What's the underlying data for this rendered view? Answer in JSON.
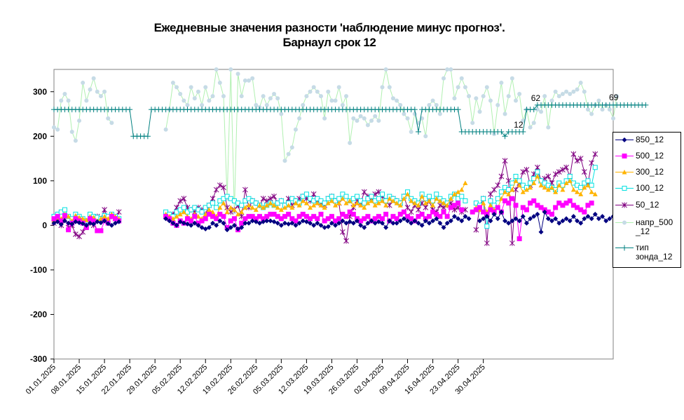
{
  "title": {
    "line1": "Ежедневные значения разности 'наблюдение минус прогноз'.",
    "line2": "Барнаул    срок 12"
  },
  "chart_data": {
    "type": "line",
    "y_ticks": [
      "300",
      "200",
      "100",
      "0",
      "-100",
      "-200",
      "-300"
    ],
    "ylim": [
      -300,
      350
    ],
    "x_ticks": [
      "01.01.2025",
      "08.01.2025",
      "15.01.2025",
      "22.01.2025",
      "29.01.2025",
      "05.02.2025",
      "12.02.2025",
      "19.02.2025",
      "26.02.2025",
      "05.03.2025",
      "12.03.2025",
      "19.03.2025",
      "26.03.2025",
      "02.04.2025",
      "09.04.2025",
      "16.04.2025",
      "23.04.2025",
      "30.04.2025"
    ],
    "grid": false,
    "legend_position": "right",
    "annotations": [
      "12",
      "62",
      "69"
    ],
    "series": [
      {
        "name": "850_12",
        "color": "#000080",
        "values": [
          5,
          8,
          2,
          10,
          5,
          3,
          8,
          6,
          4,
          0,
          5,
          3,
          8,
          6,
          10,
          4,
          0,
          5,
          8,
          null,
          null,
          null,
          null,
          null,
          null,
          null,
          null,
          null,
          null,
          null,
          null,
          15,
          10,
          5,
          0,
          8,
          5,
          3,
          0,
          5,
          0,
          -5,
          -8,
          -5,
          5,
          0,
          10,
          5,
          -10,
          -5,
          0,
          -8,
          -5,
          5,
          5,
          10,
          8,
          5,
          8,
          10,
          10,
          8,
          5,
          0,
          5,
          3,
          5,
          0,
          5,
          10,
          8,
          5,
          0,
          5,
          0,
          -5,
          -3,
          5,
          0,
          5,
          10,
          5,
          8,
          5,
          10,
          0,
          -5,
          5,
          10,
          5,
          8,
          5,
          -5,
          10,
          5,
          5,
          10,
          15,
          10,
          5,
          10,
          5,
          0,
          10,
          5,
          10,
          15,
          5,
          -5,
          5,
          10,
          20,
          15,
          10,
          20,
          15,
          null,
          null,
          10,
          15,
          20,
          10,
          25,
          15,
          30,
          10,
          5,
          10,
          15,
          10,
          20,
          5,
          15,
          20,
          25,
          -15,
          30,
          15,
          10,
          15,
          5,
          10,
          15,
          10,
          20,
          10,
          5,
          15,
          20,
          15,
          25,
          15,
          20,
          10,
          15,
          20
        ]
      },
      {
        "name": "500_12",
        "color": "#ff00ff",
        "values": [
          15,
          20,
          10,
          22,
          -10,
          5,
          15,
          10,
          5,
          -5,
          15,
          10,
          -12,
          -12,
          10,
          5,
          20,
          15,
          10,
          null,
          null,
          null,
          null,
          null,
          null,
          null,
          null,
          null,
          null,
          null,
          null,
          20,
          15,
          5,
          0,
          10,
          5,
          15,
          10,
          20,
          5,
          10,
          15,
          25,
          20,
          15,
          25,
          20,
          -5,
          10,
          15,
          -10,
          5,
          15,
          20,
          20,
          15,
          20,
          15,
          20,
          25,
          25,
          20,
          15,
          20,
          25,
          15,
          10,
          20,
          25,
          20,
          15,
          20,
          15,
          25,
          10,
          15,
          20,
          10,
          15,
          25,
          20,
          30,
          25,
          15,
          10,
          15,
          20,
          10,
          15,
          20,
          15,
          25,
          10,
          20,
          15,
          25,
          30,
          20,
          15,
          10,
          20,
          25,
          15,
          20,
          30,
          25,
          20,
          30,
          20,
          40,
          45,
          50,
          35,
          null,
          null,
          30,
          35,
          40,
          30,
          25,
          35,
          30,
          40,
          30,
          55,
          50,
          60,
          45,
          -30,
          40,
          35,
          50,
          55,
          45,
          40,
          35,
          30,
          25,
          40,
          50,
          45,
          50,
          55,
          45,
          40,
          35,
          30,
          45,
          50
        ]
      },
      {
        "name": "300_12",
        "color": "#ffb400",
        "values": [
          10,
          18,
          15,
          25,
          20,
          10,
          22,
          18,
          15,
          12,
          20,
          18,
          10,
          15,
          20,
          15,
          25,
          20,
          15,
          null,
          null,
          null,
          null,
          null,
          null,
          null,
          null,
          null,
          null,
          null,
          null,
          25,
          20,
          15,
          20,
          25,
          30,
          20,
          15,
          25,
          20,
          15,
          25,
          35,
          30,
          20,
          40,
          50,
          30,
          40,
          35,
          25,
          30,
          40,
          45,
          40,
          35,
          45,
          40,
          45,
          50,
          45,
          40,
          35,
          40,
          45,
          40,
          50,
          45,
          55,
          50,
          40,
          45,
          50,
          45,
          40,
          50,
          55,
          45,
          50,
          60,
          50,
          55,
          45,
          50,
          45,
          40,
          50,
          55,
          45,
          50,
          55,
          45,
          60,
          55,
          50,
          45,
          60,
          70,
          55,
          50,
          45,
          65,
          50,
          55,
          45,
          60,
          55,
          50,
          45,
          60,
          70,
          75,
          80,
          95,
          null,
          null,
          40,
          35,
          50,
          30,
          45,
          35,
          40,
          60,
          75,
          70,
          80,
          100,
          90,
          75,
          80,
          85,
          95,
          110,
          90,
          85,
          80,
          85,
          75,
          90,
          80,
          95,
          100,
          80,
          75,
          70,
          85,
          90,
          75,
          70
        ]
      },
      {
        "name": "100_12",
        "color": "#00e0e0",
        "values": [
          20,
          25,
          30,
          35,
          20,
          15,
          25,
          20,
          15,
          10,
          25,
          20,
          18,
          15,
          22,
          20,
          25,
          20,
          15,
          null,
          null,
          null,
          null,
          null,
          null,
          null,
          null,
          null,
          null,
          null,
          null,
          30,
          25,
          20,
          30,
          35,
          40,
          30,
          35,
          40,
          35,
          30,
          40,
          45,
          50,
          40,
          55,
          60,
          65,
          60,
          55,
          50,
          45,
          55,
          60,
          55,
          50,
          45,
          40,
          45,
          50,
          45,
          50,
          55,
          45,
          50,
          60,
          55,
          50,
          65,
          70,
          60,
          55,
          60,
          55,
          50,
          60,
          65,
          55,
          60,
          70,
          65,
          55,
          60,
          65,
          55,
          50,
          60,
          65,
          55,
          60,
          70,
          55,
          65,
          60,
          55,
          50,
          65,
          75,
          60,
          55,
          50,
          70,
          60,
          65,
          55,
          70,
          60,
          55,
          50,
          65,
          70,
          60,
          65,
          55,
          null,
          null,
          50,
          45,
          60,
          -2,
          55,
          45,
          60,
          75,
          85,
          80,
          95,
          110,
          100,
          90,
          85,
          95,
          105,
          120,
          100,
          95,
          90,
          85,
          80,
          95,
          90,
          100,
          110,
          95,
          90,
          85,
          95,
          100,
          90,
          130
        ]
      },
      {
        "name": "50_12",
        "color": "#800080",
        "values": [
          5,
          10,
          0,
          20,
          -5,
          0,
          -20,
          -25,
          -15,
          10,
          5,
          0,
          20,
          15,
          35,
          10,
          20,
          15,
          30,
          null,
          null,
          null,
          null,
          null,
          null,
          null,
          null,
          null,
          null,
          null,
          null,
          20,
          15,
          25,
          40,
          55,
          60,
          40,
          35,
          30,
          40,
          35,
          25,
          45,
          60,
          80,
          90,
          85,
          40,
          30,
          35,
          45,
          20,
          80,
          40,
          55,
          50,
          45,
          60,
          55,
          60,
          65,
          50,
          55,
          45,
          60,
          45,
          55,
          60,
          65,
          60,
          55,
          70,
          55,
          50,
          45,
          60,
          65,
          55,
          50,
          -15,
          -35,
          20,
          40,
          55,
          50,
          75,
          65,
          60,
          70,
          75,
          65,
          55,
          45,
          60,
          55,
          50,
          65,
          40,
          30,
          45,
          35,
          50,
          40,
          55,
          35,
          30,
          45,
          40,
          45,
          50,
          35,
          40,
          30,
          35,
          null,
          null,
          -10,
          40,
          60,
          -40,
          70,
          80,
          90,
          110,
          145,
          100,
          -40,
          80,
          95,
          120,
          125,
          90,
          115,
          130,
          100,
          105,
          110,
          95,
          115,
          120,
          125,
          130,
          110,
          160,
          145,
          150,
          120,
          95,
          140,
          160
        ]
      },
      {
        "name": "напр_500_12",
        "color": "#b0f0b0",
        "marker_color": "#c6dbe6",
        "values": [
          220,
          215,
          280,
          295,
          280,
          210,
          190,
          235,
          320,
          280,
          305,
          330,
          300,
          290,
          300,
          240,
          230,
          null,
          null,
          null,
          null,
          null,
          null,
          null,
          null,
          null,
          null,
          null,
          null,
          null,
          null,
          215,
          260,
          320,
          310,
          295,
          280,
          270,
          310,
          285,
          300,
          270,
          310,
          280,
          290,
          350,
          320,
          290,
          60,
          350,
          30,
          340,
          290,
          325,
          325,
          330,
          270,
          265,
          290,
          270,
          285,
          295,
          285,
          250,
          145,
          160,
          175,
          215,
          240,
          270,
          290,
          300,
          310,
          300,
          290,
          240,
          300,
          280,
          280,
          310,
          270,
          290,
          185,
          240,
          235,
          245,
          240,
          225,
          235,
          245,
          235,
          310,
          350,
          310,
          285,
          280,
          270,
          250,
          240,
          210,
          250,
          230,
          240,
          200,
          270,
          280,
          270,
          250,
          330,
          350,
          350,
          285,
          310,
          330,
          310,
          290,
          230,
          285,
          255,
          290,
          310,
          280,
          205,
          270,
          320,
          250,
          290,
          330,
          280,
          295,
          235,
          260,
          220,
          230,
          260,
          255,
          290,
          220,
          280,
          300,
          290,
          295,
          300,
          295,
          300,
          305,
          320,
          300,
          260,
          250,
          270,
          280,
          260,
          270,
          260,
          240,
          290
        ]
      },
      {
        "name": "тип зонда_12",
        "color": "#008080",
        "values": [
          260,
          260,
          260,
          260,
          260,
          260,
          260,
          260,
          260,
          260,
          260,
          260,
          260,
          260,
          260,
          260,
          260,
          260,
          260,
          260,
          260,
          260,
          200,
          200,
          200,
          200,
          200,
          260,
          260,
          260,
          260,
          260,
          260,
          260,
          260,
          260,
          260,
          260,
          260,
          260,
          260,
          260,
          260,
          260,
          260,
          260,
          260,
          260,
          260,
          260,
          260,
          260,
          260,
          260,
          260,
          260,
          260,
          260,
          260,
          260,
          260,
          260,
          260,
          260,
          260,
          260,
          260,
          260,
          260,
          260,
          260,
          260,
          260,
          260,
          260,
          260,
          260,
          260,
          260,
          260,
          260,
          260,
          260,
          260,
          260,
          260,
          260,
          260,
          260,
          260,
          260,
          260,
          260,
          260,
          260,
          260,
          260,
          260,
          260,
          260,
          260,
          210,
          260,
          260,
          260,
          260,
          260,
          260,
          260,
          260,
          260,
          260,
          260,
          210,
          210,
          210,
          210,
          210,
          210,
          210,
          210,
          210,
          210,
          210,
          210,
          200,
          210,
          210,
          210,
          210,
          210,
          260,
          260,
          260,
          270,
          270,
          270,
          270,
          270,
          270,
          270,
          270,
          270,
          270,
          270,
          270,
          270,
          270,
          270,
          270,
          270,
          270,
          270,
          270,
          270,
          270,
          270,
          270,
          270,
          270,
          270,
          270,
          270,
          270,
          270
        ]
      }
    ]
  },
  "legend": {
    "items": [
      {
        "label": "850_12",
        "color": "#000080",
        "marker": "diamond"
      },
      {
        "label": "500_12",
        "color": "#ff00ff",
        "marker": "square"
      },
      {
        "label": "300_12",
        "color": "#ffb400",
        "marker": "triangle"
      },
      {
        "label": "100_12",
        "color": "#00e0e0",
        "marker": "open-square"
      },
      {
        "label": "50_12",
        "color": "#800080",
        "marker": "star"
      },
      {
        "label": "напр_500\n_12",
        "color": "#c6dbe6",
        "marker": "circle"
      },
      {
        "label": "тип\nзонда_12",
        "color": "#008080",
        "marker": "plus"
      }
    ]
  }
}
